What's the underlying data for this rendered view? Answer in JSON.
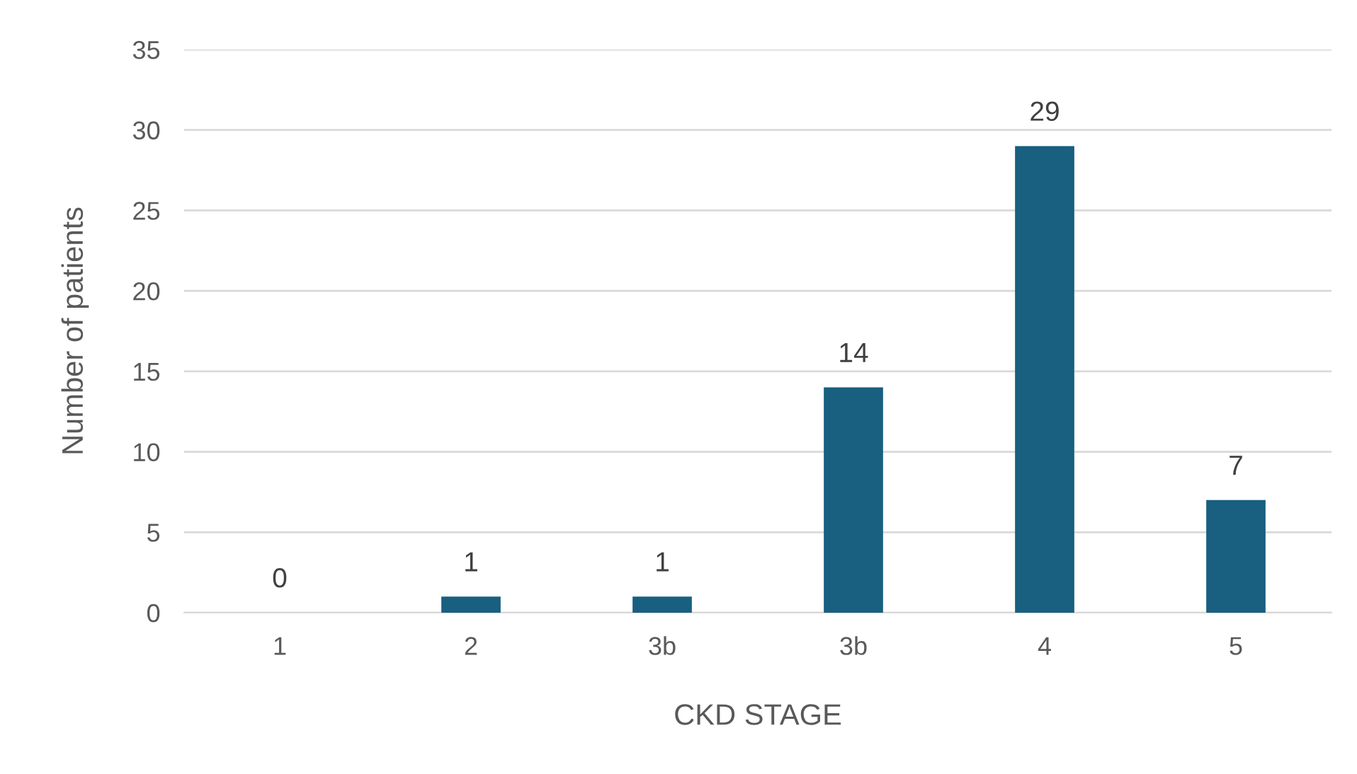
{
  "chart_data": {
    "type": "bar",
    "xlabel": "CKD STAGE",
    "ylabel": "Number of patients",
    "categories": [
      "1",
      "2",
      "3b",
      "3b",
      "4",
      "5"
    ],
    "values": [
      0,
      1,
      1,
      14,
      29,
      7
    ],
    "color": "#185f80",
    "ylim": [
      0,
      35
    ],
    "yticks": [
      0,
      5,
      10,
      15,
      20,
      25,
      30,
      35
    ],
    "grid": "y",
    "data_labels": true,
    "legend": false
  }
}
